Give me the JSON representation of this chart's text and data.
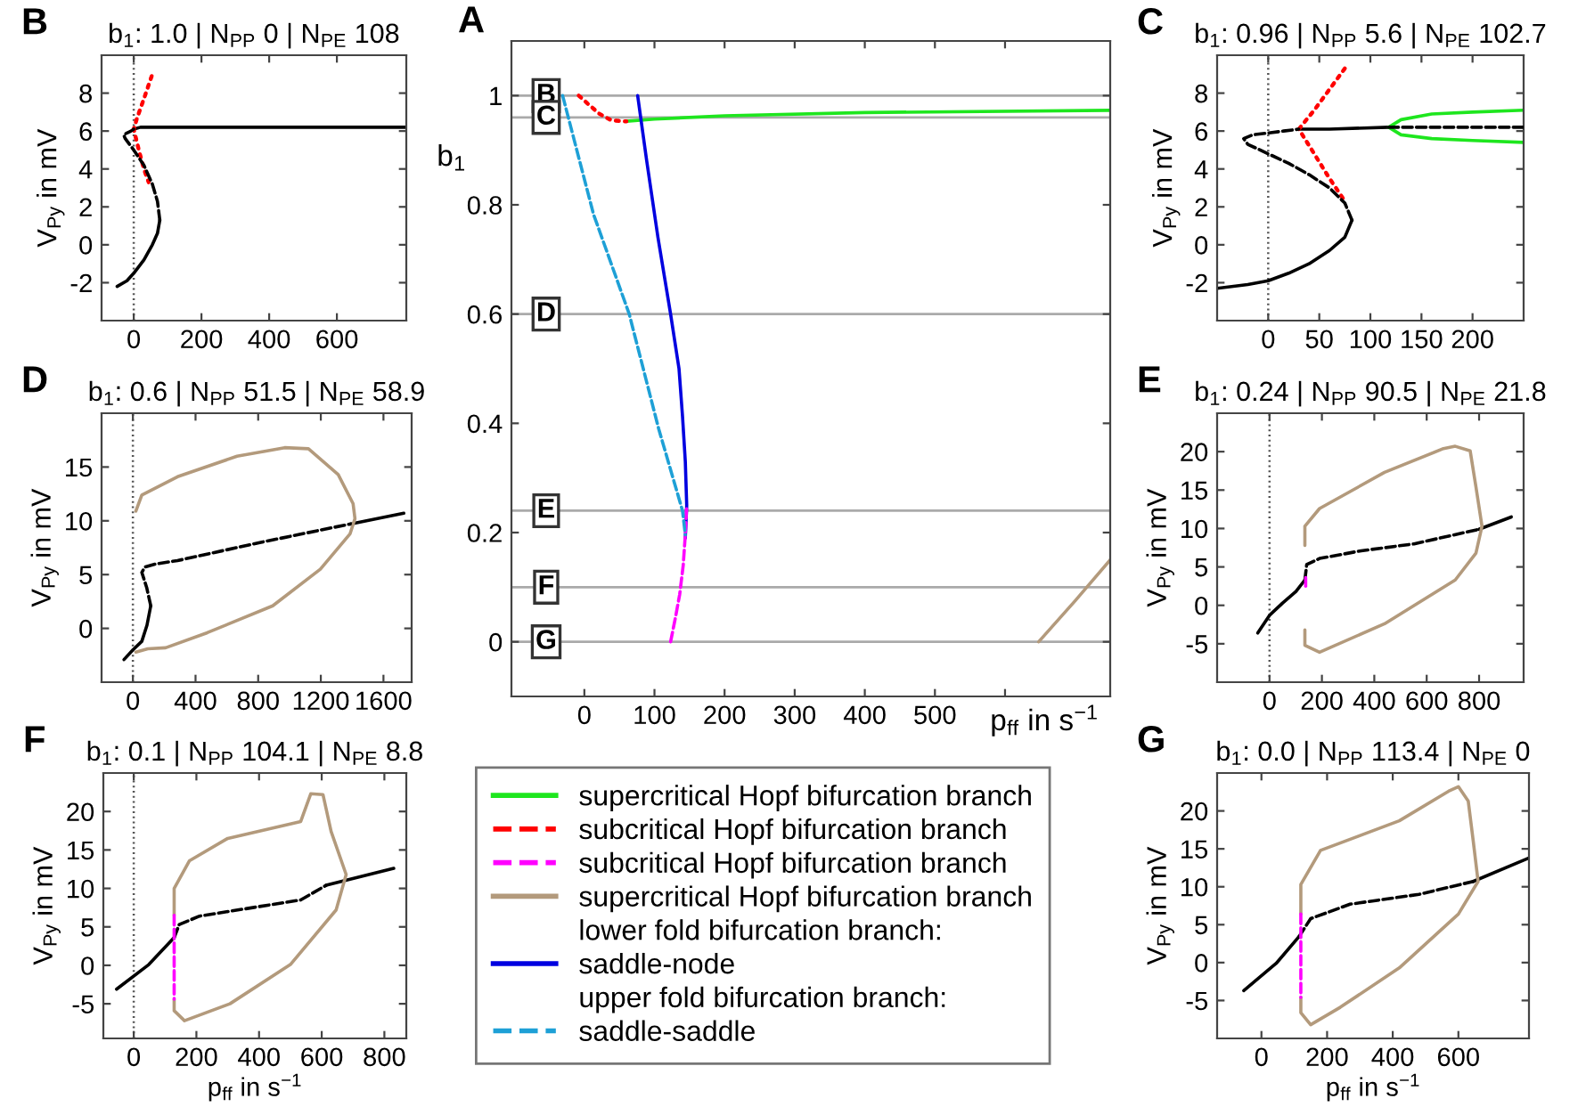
{
  "chart_data": [
    {
      "type": "line",
      "title": "b$_{1}$: 1.0 | N$_{PP}$ 0 | N$_{PE}$ 108",
      "ylabel": "V$_{Py}$ in mV",
      "annotations": [
        "B"
      ],
      "xlim": [
        -95,
        805
      ],
      "ylim": [
        -4,
        10
      ],
      "xticks": [
        0,
        200,
        400,
        600
      ],
      "yticks": [
        -2,
        0,
        2,
        4,
        6,
        8
      ],
      "ref_lines": [
        {
          "axis": "x",
          "value": 0,
          "color": "#555555",
          "line_style": "dotted"
        }
      ],
      "series": [
        {
          "color": "#000000",
          "line_style": "solid",
          "x": [
            -49,
            -20,
            0,
            30,
            55,
            70,
            77
          ],
          "values": [
            -2.2,
            -1.9,
            -1.5,
            -0.8,
            0,
            0.6,
            1.3
          ]
        },
        {
          "color": "#000000",
          "line_style": "dashed",
          "x": [
            77,
            70,
            55,
            30,
            0,
            -25,
            -30,
            -20,
            -8,
            0
          ],
          "values": [
            1.3,
            2.3,
            3.2,
            4.2,
            5.0,
            5.6,
            5.8,
            5.9,
            6.0,
            6.1
          ]
        },
        {
          "color": "#000000",
          "line_style": "solid",
          "x": [
            0,
            20,
            60,
            200,
            805
          ],
          "values": [
            6.1,
            6.2,
            6.2,
            6.2,
            6.2
          ]
        },
        {
          "color": "#ff0000",
          "line_style": "dotted",
          "x": [
            53,
            30,
            10,
            0,
            15,
            30,
            44
          ],
          "values": [
            8.9,
            7.7,
            6.7,
            6.1,
            5.0,
            4.0,
            3.3
          ]
        }
      ]
    },
    {
      "type": "line",
      "xlabel": "p$_{ff}$ in s$^{−1}$",
      "ylabel": "b$_{1}$",
      "annotations": [
        "A",
        "lower fold bifurcation branch:",
        "upper fold bifurcation branch:"
      ],
      "legend": "bottom",
      "xlim": [
        -104,
        750
      ],
      "ylim": [
        -0.1,
        1.1
      ],
      "xticks": [
        0,
        100,
        200,
        300,
        400,
        500,
        {
          "value": 600,
          "label": null
        }
      ],
      "yticks": [
        0,
        0.2,
        0.4,
        0.6,
        0.8,
        1
      ],
      "ref_lines": [
        {
          "axis": "y",
          "value": 1,
          "label": "B",
          "color": "#aaaaaa"
        },
        {
          "axis": "y",
          "value": 0.96,
          "label": "C",
          "color": "#aaaaaa"
        },
        {
          "axis": "y",
          "value": 0.6,
          "label": "D",
          "color": "#aaaaaa"
        },
        {
          "axis": "y",
          "value": 0.24,
          "label": "E",
          "color": "#aaaaaa"
        },
        {
          "axis": "y",
          "value": 0.1,
          "label": "F",
          "color": "#aaaaaa"
        },
        {
          "axis": "y",
          "value": 0,
          "label": "G",
          "color": "#aaaaaa"
        }
      ],
      "series": [
        {
          "name": "supercritical Hopf bifurcation branch",
          "color": "#1ee61e",
          "line_style": "solid",
          "x": [
            60,
            100,
            200,
            400,
            750
          ],
          "values": [
            0.953,
            0.957,
            0.963,
            0.969,
            0.973
          ]
        },
        {
          "name": "subcritical Hopf bifurcation branch",
          "color": "#ff0000",
          "line_style": "dotted",
          "x": [
            -8,
            5,
            21,
            38,
            55,
            60
          ],
          "values": [
            1.0,
            0.985,
            0.967,
            0.955,
            0.953,
            0.953
          ]
        },
        {
          "name": "subcritical Hopf bifurcation branch",
          "color": "#ff00ff",
          "line_style": "dashed",
          "x": [
            123,
            130,
            136,
            141,
            144,
            146
          ],
          "values": [
            0,
            0.045,
            0.087,
            0.14,
            0.196,
            0.25
          ]
        },
        {
          "name": "supercritical Hopf bifurcation branch",
          "color": "#b39a7c",
          "line_style": "solid",
          "x": [
            648,
            700,
            750
          ],
          "values": [
            0,
            0.075,
            0.15
          ]
        },
        {
          "name": "saddle-node",
          "color": "#0000e0",
          "line_style": "solid",
          "x": [
            76,
            89,
            105,
            123,
            135,
            140,
            144,
            146,
            144
          ],
          "values": [
            1.0,
            0.88,
            0.74,
            0.6,
            0.5,
            0.413,
            0.33,
            0.25,
            0.19
          ]
        },
        {
          "name": "saddle-saddle",
          "color": "#1ea0d6",
          "line_style": "dashed",
          "x": [
            -31,
            13,
            64,
            106,
            140,
            144
          ],
          "values": [
            1.0,
            0.783,
            0.6,
            0.39,
            0.24,
            0.196
          ]
        }
      ]
    },
    {
      "type": "line",
      "title": "b$_{1}$: 0.96 | N$_{PP}$ 5.6 | N$_{PE}$ 102.7",
      "ylabel": "V$_{Py}$ in mV",
      "annotations": [
        "C"
      ],
      "xlim": [
        -50,
        250
      ],
      "ylim": [
        -4,
        10
      ],
      "xticks": [
        0,
        50,
        100,
        150,
        200
      ],
      "yticks": [
        -2,
        0,
        2,
        4,
        6,
        8
      ],
      "ref_lines": [
        {
          "axis": "x",
          "value": 0,
          "color": "#555555",
          "line_style": "dotted"
        }
      ],
      "series": [
        {
          "color": "#000000",
          "line_style": "solid",
          "x": [
            -50,
            -20,
            0,
            20,
            40,
            60,
            75,
            82
          ],
          "values": [
            -2.3,
            -2.1,
            -1.9,
            -1.5,
            -1.0,
            -0.3,
            0.4,
            1.3
          ]
        },
        {
          "color": "#000000",
          "line_style": "dashed",
          "x": [
            82,
            75,
            60,
            40,
            20,
            0,
            -20,
            -24,
            -15,
            0,
            15,
            30
          ],
          "values": [
            1.3,
            2.2,
            3.0,
            3.7,
            4.3,
            4.8,
            5.3,
            5.6,
            5.8,
            5.9,
            6.0,
            6.1
          ]
        },
        {
          "color": "#000000",
          "line_style": "solid",
          "x": [
            30,
            60,
            118
          ],
          "values": [
            6.1,
            6.1,
            6.2
          ]
        },
        {
          "color": "#000000",
          "line_style": "dashed",
          "x": [
            118,
            180,
            250
          ],
          "values": [
            6.2,
            6.2,
            6.2
          ]
        },
        {
          "color": "#ff0000",
          "line_style": "dotted",
          "x": [
            75,
            60,
            45,
            30,
            45,
            60,
            75
          ],
          "values": [
            9.3,
            8.2,
            7.1,
            6.1,
            4.8,
            3.5,
            2.3
          ]
        },
        {
          "color": "#1ee61e",
          "line_style": "solid",
          "x": [
            250,
            200,
            160,
            130,
            118,
            130,
            160,
            200,
            250
          ],
          "values": [
            7.1,
            7.0,
            6.9,
            6.6,
            6.2,
            5.8,
            5.6,
            5.5,
            5.4
          ]
        }
      ]
    },
    {
      "type": "line",
      "title": "b$_{1}$: 0.6 | N$_{PP}$ 51.5 | N$_{PE}$ 58.9",
      "ylabel": "V$_{Py}$ in mV",
      "annotations": [
        "D"
      ],
      "xlim": [
        -200,
        1780
      ],
      "ylim": [
        -5,
        20
      ],
      "xticks": [
        0,
        400,
        800,
        1200,
        1600
      ],
      "yticks": [
        0,
        5,
        10,
        15
      ],
      "ref_lines": [
        {
          "axis": "x",
          "value": 0,
          "color": "#555555",
          "line_style": "dotted"
        }
      ],
      "series": [
        {
          "color": "#000000",
          "line_style": "solid",
          "x": [
            -57,
            0,
            57,
            90,
            114
          ],
          "values": [
            -2.9,
            -2.0,
            -1.2,
            0.3,
            2.1
          ]
        },
        {
          "color": "#000000",
          "line_style": "dashed",
          "x": [
            114,
            88,
            57,
            76,
            150,
            285,
            817,
            1387
          ],
          "values": [
            2.1,
            3.8,
            5.2,
            5.7,
            6.0,
            6.3,
            8.0,
            9.7
          ]
        },
        {
          "color": "#000000",
          "line_style": "solid",
          "x": [
            1387,
            1730
          ],
          "values": [
            9.7,
            10.7
          ]
        },
        {
          "color": "#b39a7c",
          "line_style": "solid",
          "x": [
            19,
            57,
            285,
            665,
            969,
            1121,
            1311,
            1406,
            1418,
            1387,
            1197,
            893,
            475,
            209,
            95,
            19
          ],
          "values": [
            10.9,
            12.4,
            14.1,
            16,
            16.8,
            16.7,
            14.3,
            11.6,
            10.2,
            8.8,
            5.5,
            2.1,
            -0.4,
            -1.8,
            -1.9,
            -2.2
          ]
        }
      ]
    },
    {
      "type": "line",
      "title": "b$_{1}$: 0.24 | N$_{PP}$ 90.5 | N$_{PE}$ 21.8",
      "ylabel": "V$_{Py}$ in mV",
      "annotations": [
        "E"
      ],
      "xlim": [
        -200,
        970
      ],
      "ylim": [
        -10,
        25
      ],
      "xticks": [
        0,
        200,
        400,
        600,
        800
      ],
      "yticks": [
        -5,
        0,
        5,
        10,
        15,
        20
      ],
      "ref_lines": [
        {
          "axis": "x",
          "value": 0,
          "color": "#555555",
          "line_style": "dotted"
        }
      ],
      "series": [
        {
          "color": "#000000",
          "line_style": "solid",
          "x": [
            -45,
            0,
            50,
            101,
            135
          ],
          "values": [
            -3.6,
            -1.3,
            0.3,
            1.8,
            3.3
          ]
        },
        {
          "color": "#000000",
          "line_style": "dashed",
          "x": [
            135,
            142,
            191,
            350,
            552,
            800
          ],
          "values": [
            3.3,
            5.3,
            6.1,
            7.1,
            8.0,
            9.9
          ]
        },
        {
          "color": "#000000",
          "line_style": "solid",
          "x": [
            800,
            923
          ],
          "values": [
            9.9,
            11.5
          ]
        },
        {
          "color": "#ff00ff",
          "line_style": "dashed",
          "x": [
            138,
            138
          ],
          "values": [
            3.6,
            2.5
          ]
        },
        {
          "color": "#b39a7c",
          "line_style": "solid",
          "x": [
            135,
            135,
            191,
            439,
            664,
            709,
            766,
            788,
            811,
            788,
            709,
            439,
            191,
            135,
            135
          ],
          "values": [
            7.8,
            10.3,
            12.6,
            17.3,
            20.4,
            20.7,
            20.1,
            15.4,
            10.3,
            6.8,
            3.3,
            -2.4,
            -6.1,
            -5.2,
            -3.2
          ]
        }
      ]
    },
    {
      "type": "line",
      "title": "b$_{1}$: 0.1 | N$_{PP}$ 104.1 | N$_{PE}$ 8.8",
      "xlabel": "p$_{ff}$ in s$^{−1}$",
      "ylabel": "V$_{Py}$ in mV",
      "annotations": [
        "F"
      ],
      "xlim": [
        -97,
        870
      ],
      "ylim": [
        -9.5,
        25
      ],
      "xticks": [
        0,
        200,
        400,
        600,
        800
      ],
      "yticks": [
        -5,
        0,
        5,
        10,
        15,
        20
      ],
      "ref_lines": [
        {
          "axis": "x",
          "value": 0,
          "color": "#555555",
          "line_style": "dotted"
        }
      ],
      "series": [
        {
          "color": "#000000",
          "line_style": "solid",
          "x": [
            -55,
            48,
            129
          ],
          "values": [
            -3.1,
            0.1,
            3.6
          ]
        },
        {
          "color": "#000000",
          "line_style": "dashed",
          "x": [
            129,
            145,
            210,
            533,
            614
          ],
          "values": [
            3.6,
            5.3,
            6.4,
            8.5,
            10.4
          ]
        },
        {
          "color": "#000000",
          "line_style": "solid",
          "x": [
            614,
            830
          ],
          "values": [
            10.4,
            12.6
          ]
        },
        {
          "color": "#b39a7c",
          "line_style": "solid",
          "x": [
            129,
            129,
            178,
            300,
            533,
            565,
            604,
            630,
            678,
            646,
            500,
            307,
            162,
            129,
            129
          ],
          "values": [
            6.5,
            10,
            13.6,
            16.5,
            18.7,
            22.3,
            22.2,
            17.4,
            11.8,
            7.2,
            0.1,
            -5.0,
            -7.2,
            -5.9,
            -4.4
          ]
        },
        {
          "color": "#ff00ff",
          "line_style": "dashed",
          "x": [
            129,
            129
          ],
          "values": [
            6.5,
            -4.4
          ]
        }
      ]
    },
    {
      "type": "line",
      "title": "b$_{1}$: 0.0 | N$_{PP}$ 113.4 | N$_{PE}$ 0",
      "xlabel": "p$_{ff}$ in s$^{−1}$",
      "ylabel": "V$_{Py}$ in mV",
      "annotations": [
        "G"
      ],
      "xlim": [
        -135,
        815
      ],
      "ylim": [
        -10,
        25
      ],
      "xticks": [
        0,
        200,
        400,
        600
      ],
      "yticks": [
        -5,
        0,
        5,
        10,
        15,
        20
      ],
      "series": [
        {
          "color": "#000000",
          "line_style": "solid",
          "x": [
            -54,
            45,
            114
          ],
          "values": [
            -3.7,
            -0.1,
            3.4
          ]
        },
        {
          "color": "#000000",
          "line_style": "dashed",
          "x": [
            114,
            150,
            270,
            480,
            645
          ],
          "values": [
            3.4,
            5.8,
            7.7,
            9,
            10.7
          ]
        },
        {
          "color": "#000000",
          "line_style": "solid",
          "x": [
            645,
            815
          ],
          "values": [
            10.7,
            13.8
          ]
        },
        {
          "color": "#b39a7c",
          "line_style": "solid",
          "x": [
            120,
            120,
            180,
            420,
            570,
            600,
            630,
            645,
            660,
            600,
            420,
            240,
            150,
            120,
            120
          ],
          "values": [
            6.4,
            10.3,
            14.8,
            18.7,
            22.6,
            23.2,
            21.3,
            16.1,
            10.7,
            6.4,
            -0.7,
            -5.9,
            -8.2,
            -6.6,
            -4.6
          ]
        },
        {
          "color": "#ff00ff",
          "line_style": "dashed",
          "x": [
            120,
            120
          ],
          "values": [
            6.4,
            -4.6
          ]
        }
      ]
    }
  ]
}
